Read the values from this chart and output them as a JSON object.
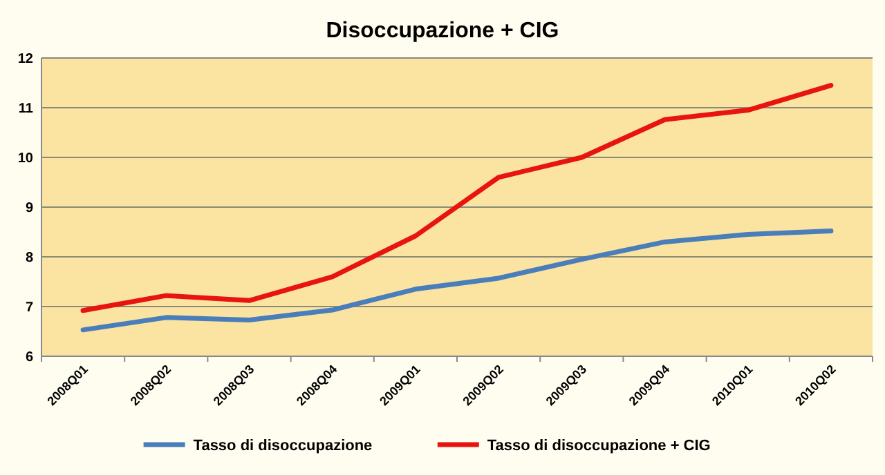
{
  "chart_data": {
    "type": "line",
    "title": "Disoccupazione + CIG",
    "categories": [
      "2008Q01",
      "2008Q02",
      "2008Q03",
      "2008Q04",
      "2009Q01",
      "2009Q02",
      "2009Q03",
      "2009Q04",
      "2010Q01",
      "2010Q02"
    ],
    "series": [
      {
        "name": "Tasso di disoccupazione",
        "color": "#4a7ebb",
        "values": [
          6.53,
          6.78,
          6.73,
          6.93,
          7.35,
          7.57,
          7.95,
          8.3,
          8.45,
          8.52
        ]
      },
      {
        "name": "Tasso di disoccupazione + CIG",
        "color": "#e8140f",
        "values": [
          6.92,
          7.22,
          7.12,
          7.6,
          8.42,
          9.6,
          10.0,
          10.76,
          10.95,
          11.45
        ]
      }
    ],
    "ylim": [
      6,
      12
    ],
    "yticks": [
      6,
      7,
      8,
      9,
      10,
      11,
      12
    ],
    "grid": "y",
    "legend": "bottom",
    "marker": "none",
    "line_style": "solid"
  }
}
